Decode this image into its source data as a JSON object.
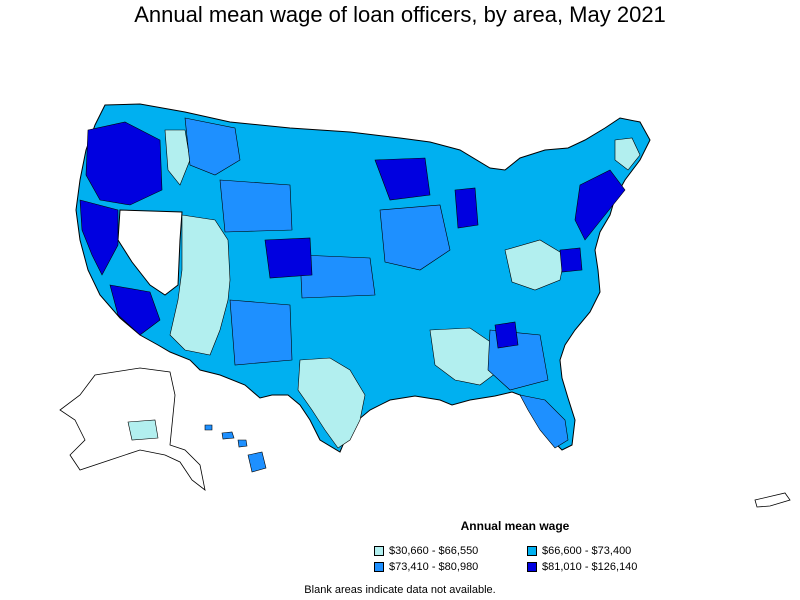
{
  "title": "Annual mean wage of loan officers, by area, May 2021",
  "legend": {
    "title": "Annual mean wage",
    "items": [
      {
        "label": "$30,660 - $66,550",
        "color": "#b2efef"
      },
      {
        "label": "$66,600 - $73,400",
        "color": "#00b0f0"
      },
      {
        "label": "$73,410 - $80,980",
        "color": "#1e90ff"
      },
      {
        "label": "$81,010 - $126,140",
        "color": "#0000e0"
      }
    ]
  },
  "note": "Blank areas indicate data not available.",
  "colors": {
    "outline": "#000000",
    "blank": "#ffffff"
  }
}
